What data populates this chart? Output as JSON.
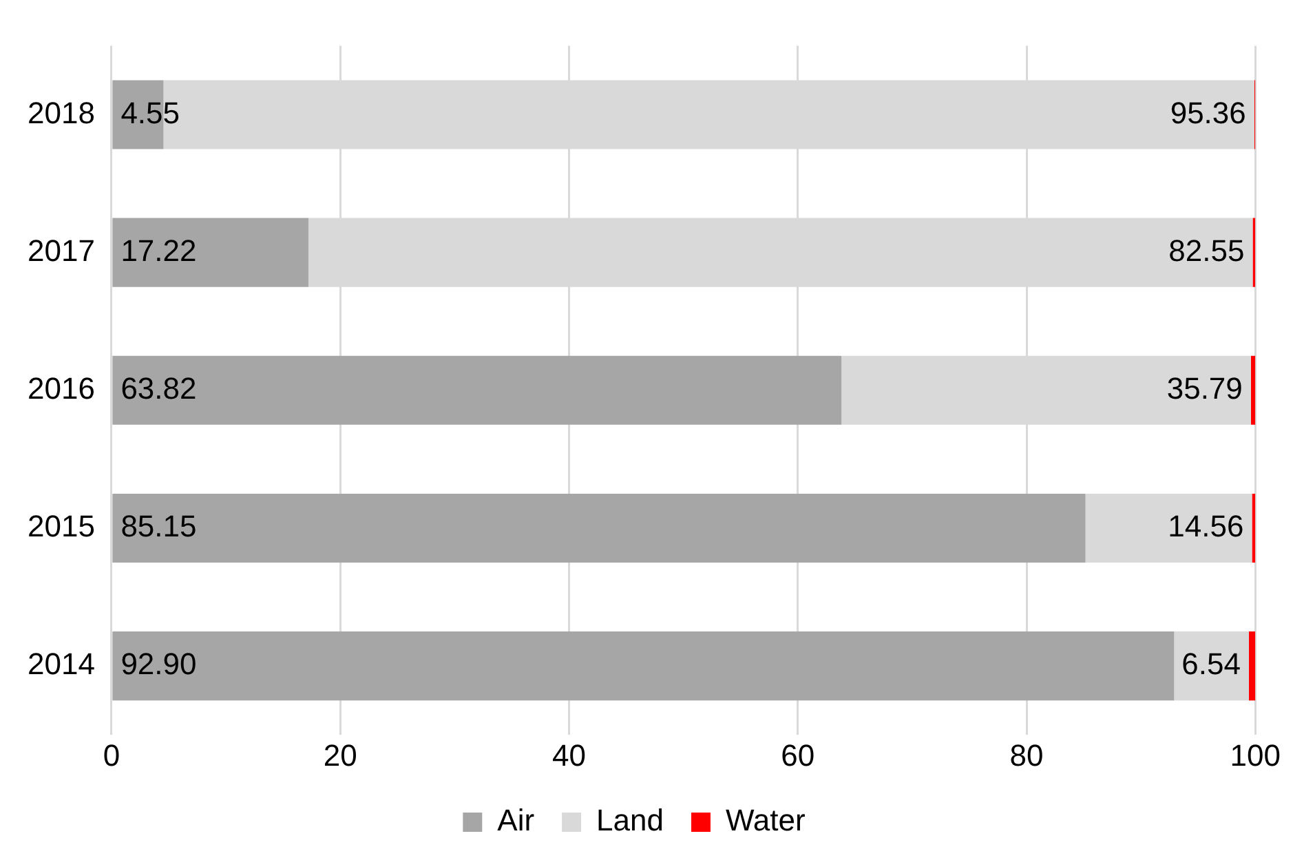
{
  "chart_data": {
    "type": "bar",
    "orientation": "horizontal",
    "stacked": true,
    "categories": [
      "2018",
      "2017",
      "2016",
      "2015",
      "2014"
    ],
    "series": [
      {
        "name": "Air",
        "color": "#a6a6a6",
        "values": [
          4.55,
          17.22,
          63.82,
          85.15,
          92.9
        ],
        "value_labels": [
          "4.55",
          "17.22",
          "63.82",
          "85.15",
          "92.90"
        ]
      },
      {
        "name": "Land",
        "color": "#d9d9d9",
        "values": [
          95.36,
          82.55,
          35.79,
          14.56,
          6.54
        ],
        "value_labels": [
          "95.36",
          "82.55",
          "35.79",
          "14.56",
          "6.54"
        ]
      },
      {
        "name": "Water",
        "color": "#ff0000",
        "values": [
          0.09,
          0.23,
          0.39,
          0.29,
          0.56
        ]
      }
    ],
    "xlim": [
      0,
      100
    ],
    "xticks": [
      0,
      20,
      40,
      60,
      80,
      100
    ],
    "grid": "x",
    "legend": "bottom"
  }
}
